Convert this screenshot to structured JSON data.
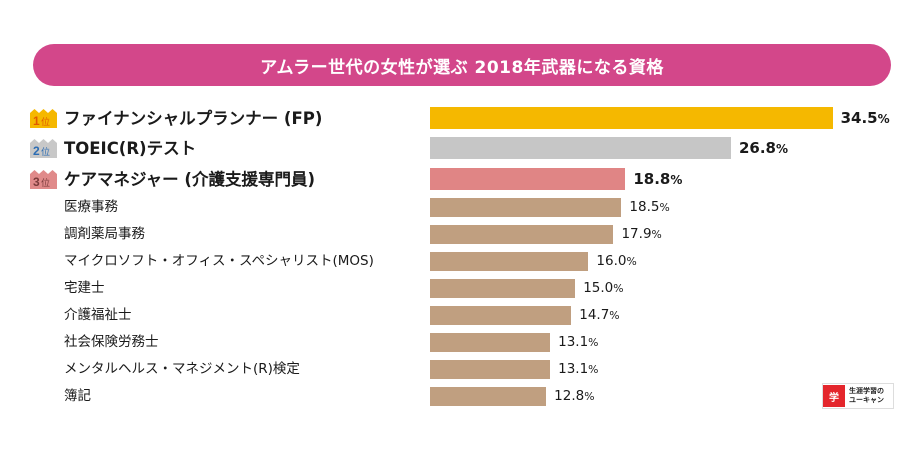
{
  "chart_data": {
    "type": "bar",
    "orientation": "horizontal",
    "title": "アムラー世代の女性が選ぶ 2018年武器になる資格",
    "xlabel": "",
    "ylabel": "",
    "grid": false,
    "unit": "%",
    "categories": [
      "ファイナンシャルプランナー (FP)",
      "TOEIC(R)テスト",
      "ケアマネジャー (介護支援専門員)",
      "医療事務",
      "調剤薬局事務",
      "マイクロソフト・オフィス・スペシャリスト(MOS)",
      "宅建士",
      "介護福祉士",
      "社会保険労務士",
      "メンタルヘルス・マネジメント(R)検定",
      "簿記"
    ],
    "values": [
      34.5,
      26.8,
      18.8,
      18.5,
      17.9,
      16.0,
      15.0,
      14.7,
      13.1,
      13.1,
      12.8
    ],
    "value_labels": [
      "34.5",
      "26.8",
      "18.8",
      "18.5",
      "17.9",
      "16.0",
      "15.0",
      "14.7",
      "13.1",
      "13.1",
      "12.8"
    ],
    "ranks": [
      {
        "num": "1",
        "suffix": "位",
        "color": "#f5b800",
        "text_color": "#e05a00"
      },
      {
        "num": "2",
        "suffix": "位",
        "color": "#c8c8c8",
        "text_color": "#2b6cb3"
      },
      {
        "num": "3",
        "suffix": "位",
        "color": "#e08a8a",
        "text_color": "#7a3a3a"
      }
    ],
    "bar_colors": [
      "#f5b800",
      "#c6c6c6",
      "#e08585",
      "#c09f80",
      "#c09f80",
      "#c09f80",
      "#c09f80",
      "#c09f80",
      "#c09f80",
      "#c09f80",
      "#c09f80"
    ]
  },
  "header": {
    "title": "アムラー世代の女性が選ぶ 2018年武器になる資格",
    "color": "#d3478a"
  },
  "logo": {
    "mark": "U-CAN",
    "line1": "生涯学習の",
    "line2": "ユーキャン",
    "color": "#e4262c"
  }
}
